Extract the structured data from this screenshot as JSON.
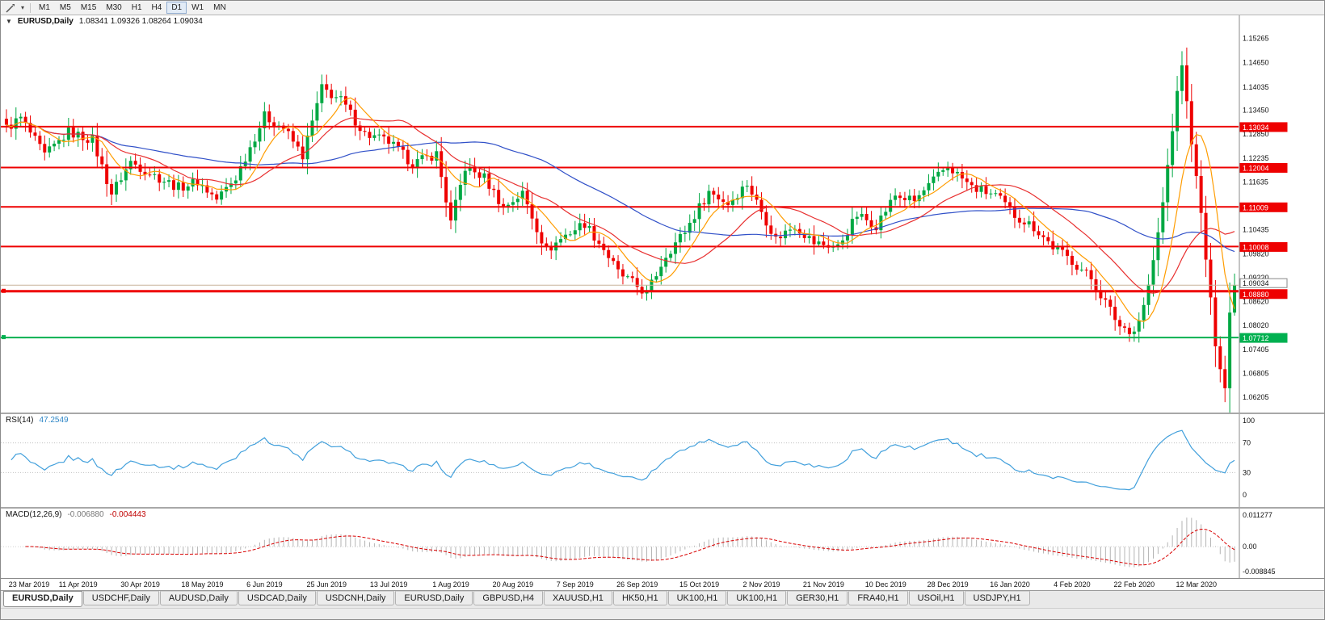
{
  "colors": {
    "up": "#00a843",
    "down": "#ee0000",
    "ma_fast": "#ff9c00",
    "ma_mid": "#e83030",
    "ma_slow": "#3050c8",
    "resistance": "#ee0000",
    "support": "#00b050",
    "current_line": "#c8b49c",
    "rsi": "#42a0dc",
    "macd_hist": "#b4b4b4",
    "macd_signal": "#d90000",
    "axis_text": "#111111"
  },
  "toolbar": {
    "periods": [
      "M1",
      "M5",
      "M15",
      "M30",
      "H1",
      "H4",
      "D1",
      "W1",
      "MN"
    ],
    "active_period": "D1"
  },
  "header": {
    "marker": "▼",
    "title": "EURUSD,Daily",
    "ohlc": "1.08341 1.09326 1.08264 1.09034"
  },
  "price_axis": {
    "ticks": [
      "1.15265",
      "1.14650",
      "1.14035",
      "1.13450",
      "1.12850",
      "1.12235",
      "1.11635",
      "1.10435",
      "1.09820",
      "1.09220",
      "1.08620",
      "1.08020",
      "1.07405",
      "1.06805",
      "1.06205"
    ]
  },
  "chart_data": {
    "type": "candlestick",
    "symbol": "EURUSD",
    "timeframe": "Daily",
    "price_range": {
      "min": 1.059,
      "max": 1.156
    },
    "candle_count": 258,
    "jitter": 0.0026,
    "wick_base": 0.0016,
    "last_candle": {
      "o": 1.08341,
      "h": 1.09326,
      "l": 1.08264,
      "c": 1.09034
    },
    "close_waypoints": [
      [
        0,
        1.13
      ],
      [
        3,
        1.1325
      ],
      [
        8,
        1.123
      ],
      [
        13,
        1.129
      ],
      [
        18,
        1.127
      ],
      [
        22,
        1.1135
      ],
      [
        26,
        1.1215
      ],
      [
        31,
        1.118
      ],
      [
        36,
        1.115
      ],
      [
        40,
        1.1165
      ],
      [
        44,
        1.112
      ],
      [
        48,
        1.1175
      ],
      [
        54,
        1.133
      ],
      [
        58,
        1.13
      ],
      [
        62,
        1.123
      ],
      [
        66,
        1.14
      ],
      [
        70,
        1.137
      ],
      [
        75,
        1.1285
      ],
      [
        80,
        1.1265
      ],
      [
        85,
        1.121
      ],
      [
        90,
        1.1235
      ],
      [
        93,
        1.106
      ],
      [
        96,
        1.12
      ],
      [
        100,
        1.1175
      ],
      [
        104,
        1.11
      ],
      [
        108,
        1.1135
      ],
      [
        113,
        1.099
      ],
      [
        117,
        1.103
      ],
      [
        121,
        1.106
      ],
      [
        125,
        1.0995
      ],
      [
        128,
        1.0935
      ],
      [
        132,
        1.09
      ],
      [
        134,
        1.0882
      ],
      [
        138,
        1.098
      ],
      [
        142,
        1.104
      ],
      [
        147,
        1.114
      ],
      [
        151,
        1.111
      ],
      [
        155,
        1.116
      ],
      [
        161,
        1.102
      ],
      [
        165,
        1.1055
      ],
      [
        169,
        1.101
      ],
      [
        174,
        1.1
      ],
      [
        178,
        1.108
      ],
      [
        182,
        1.1055
      ],
      [
        186,
        1.113
      ],
      [
        190,
        1.1115
      ],
      [
        197,
        1.1205
      ],
      [
        202,
        1.115
      ],
      [
        207,
        1.113
      ],
      [
        211,
        1.108
      ],
      [
        215,
        1.105
      ],
      [
        219,
        1.1
      ],
      [
        223,
        1.0965
      ],
      [
        227,
        1.092
      ],
      [
        230,
        1.086
      ],
      [
        233,
        1.08
      ],
      [
        236,
        1.0788
      ],
      [
        238,
        1.085
      ],
      [
        240,
        1.096
      ],
      [
        242,
        1.111
      ],
      [
        244,
        1.13
      ],
      [
        246,
        1.1465
      ],
      [
        247,
        1.136
      ],
      [
        248,
        1.127
      ],
      [
        249,
        1.117
      ],
      [
        250,
        1.108
      ],
      [
        251,
        1.097
      ],
      [
        252,
        1.086
      ],
      [
        253,
        1.076
      ],
      [
        255,
        1.0645
      ],
      [
        256,
        1.0834
      ],
      [
        257,
        1.09034
      ]
    ],
    "moving_averages": [
      {
        "period": 8,
        "color_key": "ma_fast"
      },
      {
        "period": 20,
        "color_key": "ma_mid"
      },
      {
        "period": 50,
        "color_key": "ma_slow"
      }
    ],
    "hlines": [
      {
        "price": 1.13034,
        "label": "1.13034",
        "type": "resistance",
        "width": 2,
        "anchor": false
      },
      {
        "price": 1.12004,
        "label": "1.12004",
        "type": "resistance",
        "width": 2,
        "anchor": false
      },
      {
        "price": 1.11009,
        "label": "1.11009",
        "type": "resistance",
        "width": 2,
        "anchor": false
      },
      {
        "price": 1.10008,
        "label": "1.10008",
        "type": "resistance",
        "width": 2,
        "anchor": false
      },
      {
        "price": 1.0888,
        "label": "1.08880",
        "type": "resistance",
        "width": 3,
        "anchor": true
      },
      {
        "price": 1.07712,
        "label": "1.07712",
        "type": "support",
        "width": 2,
        "anchor": true
      }
    ],
    "current_price": {
      "price": 1.09034,
      "label": "1.09034"
    },
    "rsi": {
      "name": "RSI(14)",
      "period": 14,
      "value": "47.2549",
      "axis_labels": [
        "100",
        "70",
        "30",
        "0"
      ],
      "axis_values": [
        100,
        70,
        30,
        0
      ],
      "level_lines": [
        70,
        30
      ]
    },
    "macd": {
      "name": "MACD(12,26,9)",
      "fast": 12,
      "slow": 26,
      "signal_period": 9,
      "main_value": "-0.006880",
      "signal_value": "-0.004443",
      "axis_labels": [
        "0.011277",
        "0.00",
        "-0.008845"
      ],
      "axis_max": 0.011277,
      "axis_min": -0.008845
    },
    "date_labels": [
      {
        "label": "23 Mar 2019",
        "i": 2
      },
      {
        "label": "11 Apr 2019",
        "i": 15
      },
      {
        "label": "30 Apr 2019",
        "i": 28
      },
      {
        "label": "18 May 2019",
        "i": 41
      },
      {
        "label": "6 Jun 2019",
        "i": 54
      },
      {
        "label": "25 Jun 2019",
        "i": 67
      },
      {
        "label": "13 Jul 2019",
        "i": 80
      },
      {
        "label": "1 Aug 2019",
        "i": 93
      },
      {
        "label": "20 Aug 2019",
        "i": 106
      },
      {
        "label": "7 Sep 2019",
        "i": 119
      },
      {
        "label": "26 Sep 2019",
        "i": 132
      },
      {
        "label": "15 Oct 2019",
        "i": 145
      },
      {
        "label": "2 Nov 2019",
        "i": 158
      },
      {
        "label": "21 Nov 2019",
        "i": 171
      },
      {
        "label": "10 Dec 2019",
        "i": 184
      },
      {
        "label": "28 Dec 2019",
        "i": 197
      },
      {
        "label": "16 Jan 2020",
        "i": 210
      },
      {
        "label": "4 Feb 2020",
        "i": 223
      },
      {
        "label": "22 Feb 2020",
        "i": 236
      },
      {
        "label": "12 Mar 2020",
        "i": 249
      }
    ]
  },
  "tabs": {
    "active_index": 0,
    "items": [
      "EURUSD,Daily",
      "USDCHF,Daily",
      "AUDUSD,Daily",
      "USDCAD,Daily",
      "USDCNH,Daily",
      "EURUSD,Daily",
      "GBPUSD,H4",
      "XAUUSD,H1",
      "HK50,H1",
      "UK100,H1",
      "UK100,H1",
      "GER30,H1",
      "FRA40,H1",
      "USOil,H1",
      "USDJPY,H1"
    ]
  }
}
